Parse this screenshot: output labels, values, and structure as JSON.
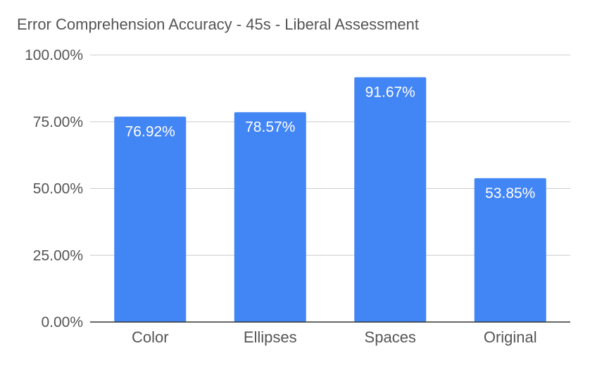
{
  "chart_data": {
    "type": "bar",
    "title": "Error Comprehension Accuracy - 45s - Liberal Assessment",
    "categories": [
      "Color",
      "Ellipses",
      "Spaces",
      "Original"
    ],
    "values": [
      76.92,
      78.57,
      91.67,
      53.85
    ],
    "data_labels": [
      "76.92%",
      "78.57%",
      "91.67%",
      "53.85%"
    ],
    "y_ticks": [
      {
        "value": 0,
        "label": "0.00%"
      },
      {
        "value": 25,
        "label": "25.00%"
      },
      {
        "value": 50,
        "label": "50.00%"
      },
      {
        "value": 75,
        "label": "75.00%"
      },
      {
        "value": 100,
        "label": "100.00%"
      }
    ],
    "ylim": [
      0,
      100
    ],
    "grid": true,
    "legend": "none",
    "colors": {
      "bar": "#4285f4",
      "grid": "#cccccc",
      "axis": "#333333",
      "text": "#555555",
      "label": "#ffffff"
    }
  }
}
